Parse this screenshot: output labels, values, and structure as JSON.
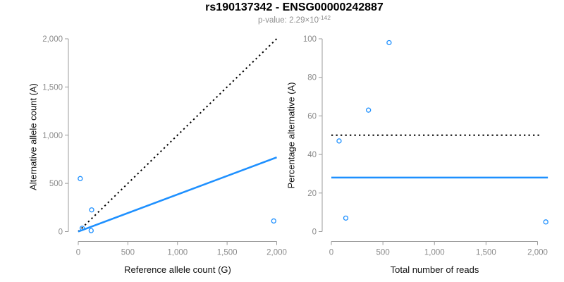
{
  "header": {
    "title": "rs190137342 - ENSG00000242887",
    "p_value_base": "p-value: 2.29×10",
    "p_value_exponent": "-142"
  },
  "colors": {
    "accent_blue": "#1e90ff",
    "identity_black": "#000000",
    "axis_gray": "#9b9b9b",
    "tick_label_gray": "#8a8a8a",
    "subtitle_gray": "#8f8f8f",
    "text_black": "#111111"
  },
  "chart_data": [
    {
      "type": "scatter",
      "panel": "left",
      "xlabel": "Reference allele count (G)",
      "ylabel": "Alternative allele count (A)",
      "xlim": [
        0,
        2100
      ],
      "ylim": [
        0,
        2000
      ],
      "grid": false,
      "legend": false,
      "xticks": [
        0,
        500,
        1000,
        1500,
        2000
      ],
      "xtick_labels": [
        "0",
        "500",
        "1,000",
        "1,500",
        "2,000"
      ],
      "yticks": [
        0,
        500,
        1000,
        1500,
        2000
      ],
      "ytick_labels": [
        "0",
        "500",
        "1,000",
        "1,500",
        "2,000"
      ],
      "points": [
        [
          20,
          550
        ],
        [
          40,
          35
        ],
        [
          130,
          10
        ],
        [
          135,
          225
        ],
        [
          1970,
          110
        ]
      ],
      "lines": [
        {
          "name": "identity-dotted-line",
          "style": "dotted",
          "color": "#000000",
          "x1": 0,
          "y1": 0,
          "x2": 2000,
          "y2": 2000
        },
        {
          "name": "fit-line",
          "style": "solid",
          "color": "#1e90ff",
          "x1": 0,
          "y1": 0,
          "x2": 2000,
          "y2": 770
        }
      ]
    },
    {
      "type": "scatter",
      "panel": "right",
      "xlabel": "Total number of reads",
      "ylabel": "Percentage alternative (A)",
      "xlim": [
        0,
        2100
      ],
      "ylim": [
        0,
        100
      ],
      "grid": false,
      "legend": false,
      "xticks": [
        0,
        500,
        1000,
        1500,
        2000
      ],
      "xtick_labels": [
        "0",
        "500",
        "1,000",
        "1,500",
        "2,000"
      ],
      "yticks": [
        0,
        20,
        40,
        60,
        80,
        100
      ],
      "ytick_labels": [
        "0",
        "20",
        "40",
        "60",
        "80",
        "100"
      ],
      "points": [
        [
          75,
          47
        ],
        [
          140,
          7
        ],
        [
          360,
          63
        ],
        [
          560,
          98
        ],
        [
          2080,
          5
        ]
      ],
      "lines": [
        {
          "name": "fifty-percent-dotted-line",
          "style": "dotted",
          "color": "#000000",
          "x1": 0,
          "y1": 50,
          "x2": 2040,
          "y2": 50
        },
        {
          "name": "mean-percentage-line",
          "style": "solid",
          "color": "#1e90ff",
          "x1": 0,
          "y1": 28,
          "x2": 2100,
          "y2": 28
        }
      ]
    }
  ]
}
